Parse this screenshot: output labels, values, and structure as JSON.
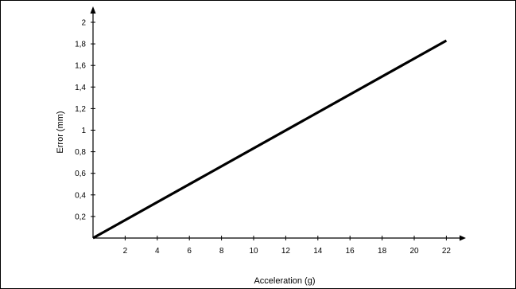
{
  "chart_data": {
    "type": "line",
    "xlabel": "Acceleration (g)",
    "ylabel": "Error (mm)",
    "xlim": [
      0,
      23
    ],
    "ylim": [
      0,
      2.1
    ],
    "x_ticks": [
      "2",
      "4",
      "6",
      "8",
      "10",
      "12",
      "14",
      "16",
      "18",
      "20",
      "22"
    ],
    "y_ticks": [
      "0,2",
      "0,4",
      "0,6",
      "0,8",
      "1",
      "1,2",
      "1,4",
      "1,6",
      "1,8",
      "2"
    ],
    "series": [
      {
        "x": [
          0,
          22
        ],
        "y": [
          0,
          1.83
        ]
      }
    ],
    "grid": false,
    "line_color": "#000000"
  }
}
